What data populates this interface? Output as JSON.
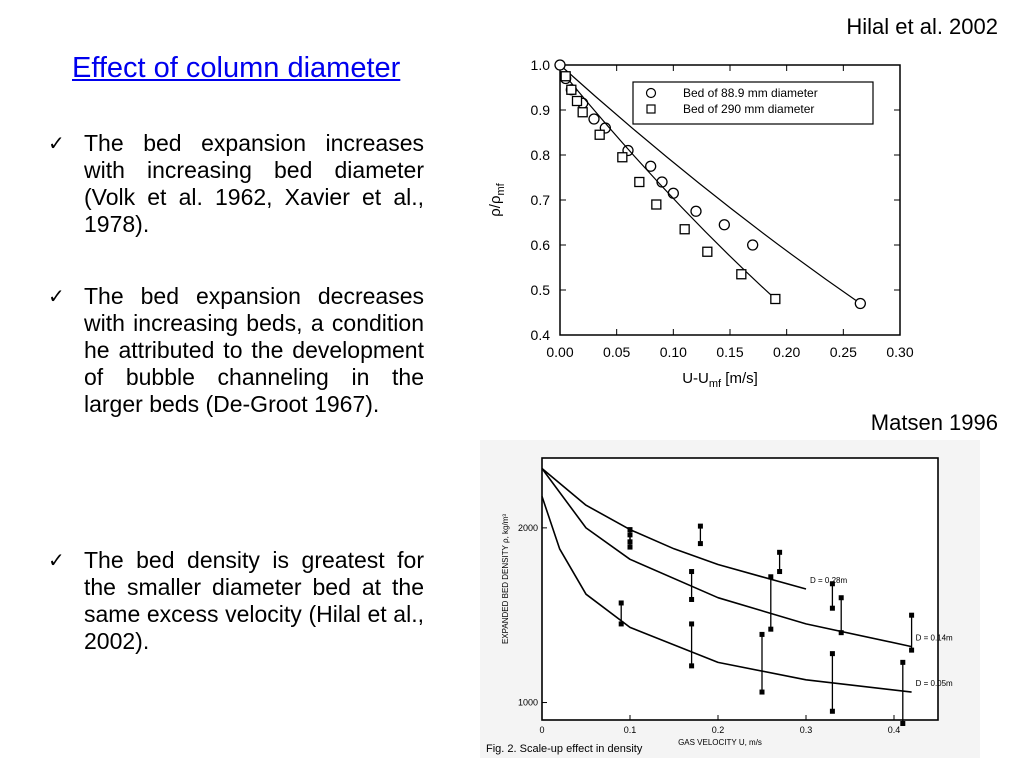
{
  "slide": {
    "title": "Effect of column diameter",
    "citations": {
      "top": "Hilal et al. 2002",
      "middle": "Matsen 1996"
    },
    "bullets": [
      {
        "marker": "✓",
        "text": "The bed expansion increases with increasing bed diameter (Volk et al. 1962, Xavier et al., 1978)."
      },
      {
        "marker": "✓",
        "text": "The bed expansion decreases with increasing beds, a condition he attributed to the development of bubble channeling in the larger beds (De-Groot 1967)."
      },
      {
        "marker": "✓",
        "text": "The bed density is greatest for the smaller diameter bed at the same excess velocity (Hilal et al., 2002)."
      }
    ]
  },
  "chart_data": [
    {
      "type": "scatter",
      "title": "",
      "xlabel": "U-U",
      "xlabel_sub": "mf",
      "xlabel_unit": "[m/s]",
      "ylabel": "ρ/ρ",
      "ylabel_sub": "mf",
      "xlim": [
        0.0,
        0.3
      ],
      "ylim": [
        0.4,
        1.0
      ],
      "x_ticks": [
        "0.00",
        "0.05",
        "0.10",
        "0.15",
        "0.20",
        "0.25",
        "0.30"
      ],
      "y_ticks": [
        "0.4",
        "0.5",
        "0.6",
        "0.7",
        "0.8",
        "0.9",
        "1.0"
      ],
      "legend_position": "top-right",
      "series": [
        {
          "name": "Bed of 88.9 mm diameter",
          "marker": "circle",
          "points": [
            [
              0.0,
              1.0
            ],
            [
              0.005,
              0.97
            ],
            [
              0.01,
              0.945
            ],
            [
              0.02,
              0.915
            ],
            [
              0.03,
              0.88
            ],
            [
              0.04,
              0.86
            ],
            [
              0.06,
              0.81
            ],
            [
              0.08,
              0.775
            ],
            [
              0.09,
              0.74
            ],
            [
              0.1,
              0.715
            ],
            [
              0.12,
              0.675
            ],
            [
              0.145,
              0.645
            ],
            [
              0.17,
              0.6
            ],
            [
              0.265,
              0.47
            ]
          ]
        },
        {
          "name": "Bed of 290 mm diameter",
          "marker": "square",
          "points": [
            [
              0.005,
              0.975
            ],
            [
              0.01,
              0.945
            ],
            [
              0.015,
              0.92
            ],
            [
              0.02,
              0.895
            ],
            [
              0.035,
              0.845
            ],
            [
              0.055,
              0.795
            ],
            [
              0.07,
              0.74
            ],
            [
              0.085,
              0.69
            ],
            [
              0.11,
              0.635
            ],
            [
              0.13,
              0.585
            ],
            [
              0.16,
              0.535
            ],
            [
              0.19,
              0.48
            ]
          ]
        }
      ]
    },
    {
      "type": "line",
      "title": "",
      "xlabel": "GAS VELOCITY U, m/s",
      "ylabel": "EXPANDED BED DENSITY ρ, kg/m³",
      "xlim": [
        0,
        0.45
      ],
      "y_ticks": [
        "1000",
        "2000"
      ],
      "x_ticks": [
        "0",
        "0.1",
        "0.2",
        "0.3",
        "0.4"
      ],
      "series": [
        {
          "name": "D = 0.28m",
          "curve": [
            [
              0,
              2340
            ],
            [
              0.05,
              2130
            ],
            [
              0.1,
              1990
            ],
            [
              0.15,
              1880
            ],
            [
              0.2,
              1790
            ],
            [
              0.25,
              1720
            ],
            [
              0.3,
              1650
            ]
          ],
          "bars": [
            [
              0.1,
              1920,
              1990
            ],
            [
              0.18,
              1910,
              2010
            ],
            [
              0.27,
              1750,
              1860
            ],
            [
              0.33,
              1540,
              1680
            ]
          ]
        },
        {
          "name": "D = 0.14m",
          "curve": [
            [
              0,
              2340
            ],
            [
              0.05,
              2000
            ],
            [
              0.1,
              1820
            ],
            [
              0.2,
              1600
            ],
            [
              0.3,
              1450
            ],
            [
              0.42,
              1320
            ]
          ],
          "bars": [
            [
              0.1,
              1890,
              1960
            ],
            [
              0.17,
              1590,
              1750
            ],
            [
              0.26,
              1420,
              1720
            ],
            [
              0.34,
              1400,
              1600
            ],
            [
              0.42,
              1300,
              1500
            ]
          ]
        },
        {
          "name": "D = 0.05m",
          "curve": [
            [
              0,
              2180
            ],
            [
              0.02,
              1880
            ],
            [
              0.05,
              1620
            ],
            [
              0.1,
              1430
            ],
            [
              0.2,
              1230
            ],
            [
              0.3,
              1130
            ],
            [
              0.42,
              1060
            ]
          ],
          "bars": [
            [
              0.09,
              1450,
              1570
            ],
            [
              0.17,
              1210,
              1450
            ],
            [
              0.25,
              1060,
              1390
            ],
            [
              0.33,
              950,
              1280
            ],
            [
              0.41,
              880,
              1230
            ]
          ]
        }
      ],
      "caption": "Fig. 2. Scale-up effect in density"
    }
  ]
}
